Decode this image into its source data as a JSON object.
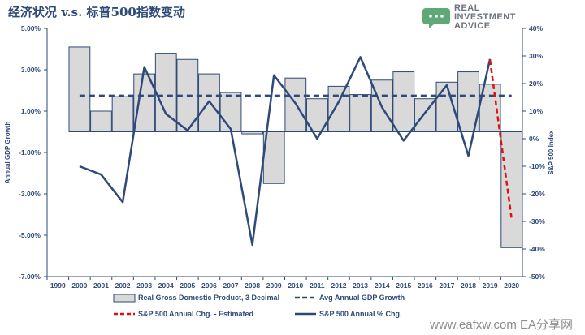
{
  "title": "经济状况 v.s. 标普500指数变动",
  "logo": {
    "lines": [
      "REAL",
      "INVESTMENT",
      "ADVICE"
    ],
    "icon": "speech-bubble-icon",
    "color": "#5fa878"
  },
  "watermark": "www.eafxw.com  EA分享网",
  "colors": {
    "axis": "#2e4a78",
    "bar_fill": "#d9d9d9",
    "bar_stroke": "#2e4a78",
    "line": "#2e4a78",
    "estimated": "#e01010"
  },
  "chart_data": {
    "type": "bar+line",
    "x_categories": [
      "1999",
      "2000",
      "2001",
      "2002",
      "2003",
      "2004",
      "2005",
      "2006",
      "2007",
      "2008",
      "2009",
      "2010",
      "2011",
      "2012",
      "2013",
      "2014",
      "2015",
      "2016",
      "2017",
      "2018",
      "2019",
      "2020"
    ],
    "left_axis": {
      "label": "Annual GDP Growth",
      "ticks": [
        "5.00%",
        "3.00%",
        "1.00%",
        "-1.00%",
        "-3.00%",
        "-5.00%",
        "-7.00%"
      ],
      "range": [
        -7,
        5
      ]
    },
    "right_axis": {
      "label": "S&P 500 Index",
      "ticks": [
        "40%",
        "30%",
        "20%",
        "10%",
        "0%",
        "-10%",
        "-20%",
        "-30%",
        "-40%",
        "-50%"
      ],
      "range": [
        -50,
        40
      ]
    },
    "series": [
      {
        "name": "Real Gross Domestic Product, 3 Decimal",
        "kind": "bar",
        "axis": "left",
        "x": [
          "2000",
          "2001",
          "2002",
          "2003",
          "2004",
          "2005",
          "2006",
          "2007",
          "2008",
          "2009",
          "2010",
          "2011",
          "2012",
          "2013",
          "2014",
          "2015",
          "2016",
          "2017",
          "2018",
          "2019",
          "2020"
        ],
        "values": [
          4.1,
          1.0,
          1.7,
          2.8,
          3.8,
          3.5,
          2.8,
          1.9,
          -0.1,
          -2.5,
          2.6,
          1.6,
          2.2,
          1.8,
          2.5,
          2.9,
          1.6,
          2.4,
          2.9,
          2.3,
          -5.6
        ]
      },
      {
        "name": "Avg Annual GDP Growth",
        "kind": "dashed-line",
        "axis": "left",
        "value": 1.75
      },
      {
        "name": "S&P 500 Annual Chg. - Estimated",
        "kind": "dashed-line",
        "axis": "right",
        "x": [
          "2019",
          "2020"
        ],
        "values": [
          28.5,
          -29
        ]
      },
      {
        "name": "S&P 500 Annual % Chg.",
        "kind": "line",
        "axis": "right",
        "x": [
          "2000",
          "2001",
          "2002",
          "2003",
          "2004",
          "2005",
          "2006",
          "2007",
          "2008",
          "2009",
          "2010",
          "2011",
          "2012",
          "2013",
          "2014",
          "2015",
          "2016",
          "2017",
          "2018",
          "2019"
        ],
        "values": [
          -10,
          -13,
          -23,
          26,
          9,
          3,
          13.6,
          3.5,
          -38.5,
          23,
          12.8,
          0,
          13.4,
          29.6,
          11.4,
          -0.7,
          9.5,
          19.4,
          -6.2,
          28.9
        ]
      }
    ],
    "legend": [
      {
        "label": "Real Gross Domestic Product, 3 Decimal",
        "kind": "bar"
      },
      {
        "label": "Avg Annual GDP Growth",
        "kind": "dashed"
      },
      {
        "label": "S&P 500 Annual Chg. - Estimated",
        "kind": "red-dashed"
      },
      {
        "label": "S&P 500 Annual % Chg.",
        "kind": "solid"
      }
    ],
    "legend_position": "bottom",
    "grid": false
  }
}
